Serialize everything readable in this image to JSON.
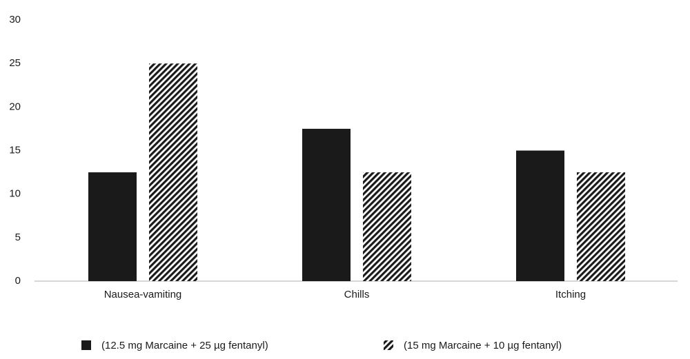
{
  "chart_data": {
    "type": "bar",
    "categories": [
      "Nausea-vamiting",
      "Chills",
      "Itching"
    ],
    "series": [
      {
        "name": "(12.5 mg Marcaine + 25 µg fentanyl)",
        "color": "#1a1a1a",
        "fill": "solid",
        "values": [
          12.5,
          17.5,
          15
        ]
      },
      {
        "name": "(15 mg Marcaine + 10 µg fentanyl)",
        "color": "#1a1a1a",
        "fill": "hatch",
        "values": [
          25,
          12.5,
          12.5
        ]
      }
    ],
    "ylim": [
      0,
      30
    ],
    "yticks": [
      0,
      5,
      10,
      15,
      20,
      25,
      30
    ],
    "grid": false,
    "legend": "bottom"
  }
}
